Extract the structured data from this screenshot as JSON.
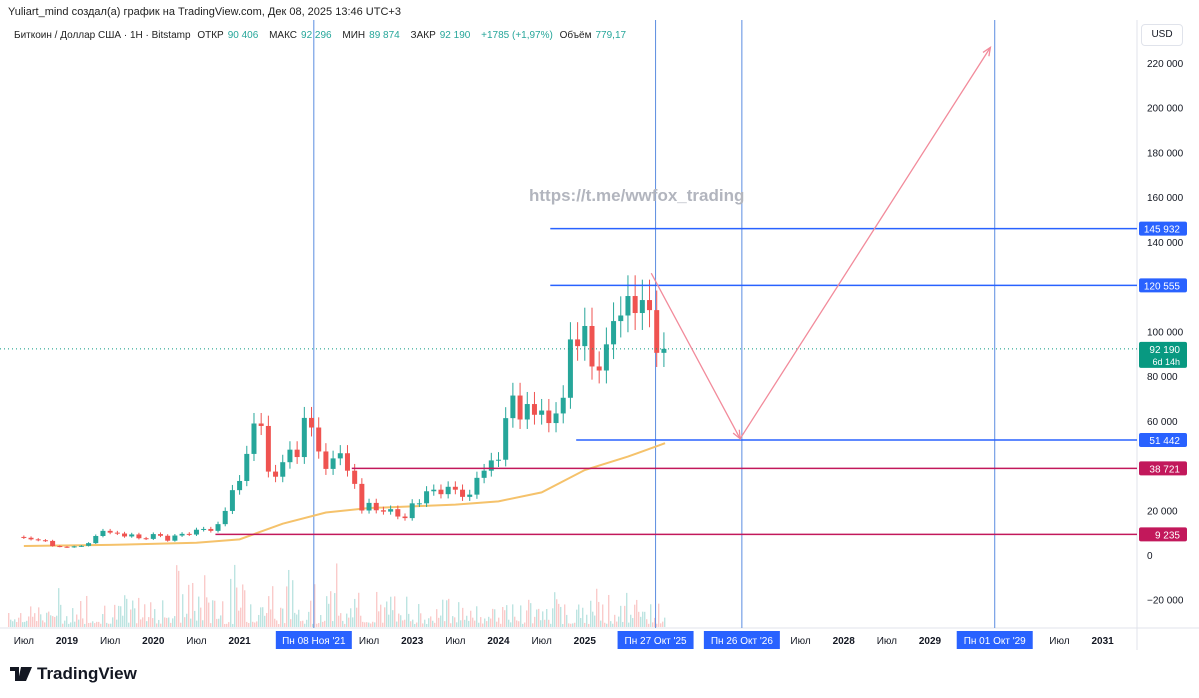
{
  "header": {
    "credit": "Yuliart_mind создал(а) график на TradingView.com, Дек 08, 2025 13:46 UTC+3",
    "symbol": "Биткоин / Доллар США · 1H · Bitstamp",
    "open_label": "ОТКР",
    "open": "90 406",
    "high_label": "МАКС",
    "high": "92 296",
    "low_label": "МИН",
    "low": "89 874",
    "close_label": "ЗАКР",
    "close": "92 190",
    "change": "+1785 (+1,97%)",
    "volume_label": "Объём",
    "volume": "779,17"
  },
  "currency": "USD",
  "watermark": "https://t.me/wwfox_trading",
  "brand": "TradingView",
  "colors": {
    "up": "#26a69a",
    "down": "#ef5350",
    "ma": "#f5c26b",
    "blue_line": "#2962ff",
    "red_line": "#c2185b",
    "arrow": "#f28b9b",
    "price_label": "#089981"
  },
  "chart_data": {
    "type": "candlestick",
    "ylim": [
      -30000,
      230000
    ],
    "y_ticks": [
      "220 000",
      "200 000",
      "180 000",
      "160 000",
      "140 000",
      "100 000",
      "80 000",
      "60 000",
      "20 000",
      "0",
      "−20 000"
    ],
    "y_tick_values": [
      220000,
      200000,
      180000,
      160000,
      140000,
      100000,
      80000,
      60000,
      20000,
      0,
      -20000
    ],
    "x_ticks": [
      {
        "label": "Июл",
        "t": 2018.5
      },
      {
        "label": "2019",
        "t": 2019
      },
      {
        "label": "Июл",
        "t": 2019.5
      },
      {
        "label": "2020",
        "t": 2020
      },
      {
        "label": "Июл",
        "t": 2020.5
      },
      {
        "label": "2021",
        "t": 2021
      },
      {
        "label": "Июл",
        "t": 2022.5
      },
      {
        "label": "2023",
        "t": 2023
      },
      {
        "label": "Июл",
        "t": 2023.5
      },
      {
        "label": "2024",
        "t": 2024
      },
      {
        "label": "Июл",
        "t": 2024.5
      },
      {
        "label": "2025",
        "t": 2025
      },
      {
        "label": "Июл",
        "t": 2027.5
      },
      {
        "label": "2028",
        "t": 2028
      },
      {
        "label": "Июл",
        "t": 2028.5
      },
      {
        "label": "2029",
        "t": 2029
      },
      {
        "label": "Июл",
        "t": 2030.5
      },
      {
        "label": "2031",
        "t": 2031
      }
    ],
    "start": "2018-07",
    "monthly_close": [
      7700,
      7000,
      6600,
      6300,
      4000,
      3700,
      3450,
      3850,
      4100,
      5300,
      8500,
      10800,
      10000,
      9600,
      8300,
      9200,
      7500,
      7200,
      9350,
      8600,
      6400,
      8700,
      9450,
      9150,
      11300,
      11650,
      10800,
      13800,
      19700,
      29000,
      33100,
      45200,
      58800,
      57700,
      37300,
      35000,
      41500,
      47100,
      43800,
      61300,
      57000,
      46300,
      38500,
      43200,
      45500,
      37700,
      31800,
      19900,
      23300,
      20000,
      19400,
      20500,
      17200,
      16500,
      23100,
      23100,
      28500,
      29200,
      27200,
      30500,
      29200,
      26000,
      27000,
      34500,
      37700,
      42300,
      42600,
      61200,
      71300,
      60600,
      67500,
      62700,
      64600,
      59000,
      63300,
      70300,
      96400,
      93400,
      102400,
      84300,
      82500,
      94200,
      104600,
      107100,
      115800,
      108200,
      114000,
      109500,
      90400,
      92190
    ],
    "moving_average": [
      [
        2018.5,
        4000
      ],
      [
        2019.5,
        4500
      ],
      [
        2020.5,
        5500
      ],
      [
        2021.0,
        7000
      ],
      [
        2021.5,
        14000
      ],
      [
        2022.0,
        19000
      ],
      [
        2022.5,
        21000
      ],
      [
        2023.5,
        22500
      ],
      [
        2024.0,
        24000
      ],
      [
        2024.5,
        28000
      ],
      [
        2025.0,
        38000
      ],
      [
        2025.5,
        44000
      ],
      [
        2025.93,
        50000
      ]
    ],
    "current_price": {
      "label": "92 190",
      "countdown": "6d 14h",
      "value": 92190
    },
    "horizontal_levels": [
      {
        "label": "145 932",
        "value": 145932,
        "from": 2024.6,
        "color": "blue"
      },
      {
        "label": "120 555",
        "value": 120555,
        "from": 2024.6,
        "color": "blue"
      },
      {
        "label": "51 442",
        "value": 51442,
        "from": 2024.9,
        "color": "blue"
      },
      {
        "label": "38 721",
        "value": 38721,
        "from": 2022.3,
        "color": "red"
      },
      {
        "label": "9 235",
        "value": 9235,
        "from": 2020.72,
        "color": "red"
      }
    ],
    "vertical_markers": [
      {
        "label": "Пн 08 Ноя '21",
        "t": 2021.86
      },
      {
        "label": "Пн 27 Окт '25",
        "t": 2025.82
      },
      {
        "label": "Пн 26 Окт '26",
        "t": 2026.82
      },
      {
        "label": "Пн 01 Окт '29",
        "t": 2029.75
      }
    ],
    "projection_path": [
      [
        2025.77,
        126000
      ],
      [
        2026.8,
        52000
      ],
      [
        2029.7,
        227000
      ]
    ]
  }
}
